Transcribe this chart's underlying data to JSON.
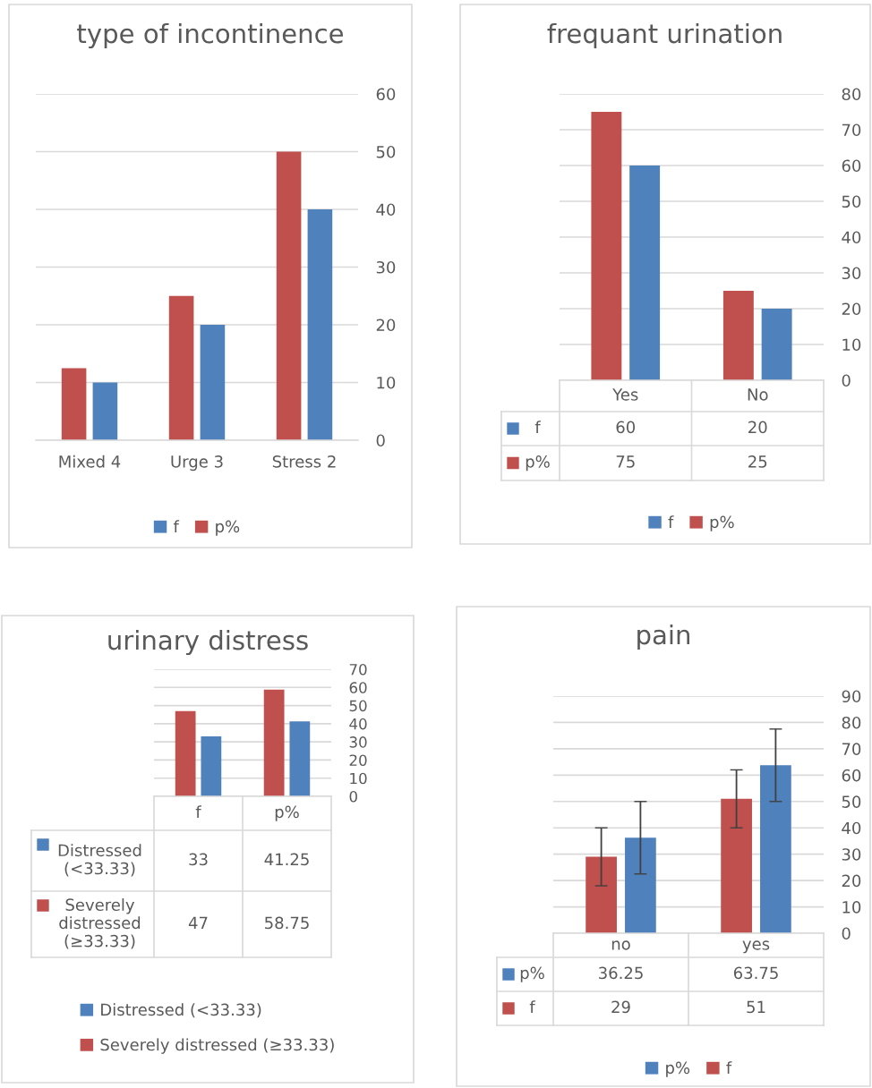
{
  "chart_data": [
    {
      "type": "bar",
      "title": "type of incontinence",
      "categories": [
        "Mixed 4",
        "Urge 3",
        "Stress 2"
      ],
      "series": [
        {
          "name": "f",
          "color": "#4f81bd",
          "values": [
            10,
            20,
            40
          ]
        },
        {
          "name": "p%",
          "color": "#c0504d",
          "values": [
            12.5,
            25,
            50
          ]
        }
      ],
      "ylim": [
        0,
        60
      ],
      "yticks": [
        0,
        10,
        20,
        30,
        40,
        50,
        60
      ],
      "grid": "y",
      "legend": "bottom"
    },
    {
      "type": "bar",
      "title": "frequant urination",
      "categories": [
        "Yes",
        "No"
      ],
      "series": [
        {
          "name": "f",
          "color": "#4f81bd",
          "values": [
            60,
            20
          ]
        },
        {
          "name": "p%",
          "color": "#c0504d",
          "values": [
            75,
            25
          ]
        }
      ],
      "ylim": [
        0,
        80
      ],
      "yticks": [
        0,
        10,
        20,
        30,
        40,
        50,
        60,
        70,
        80
      ],
      "grid": "y",
      "legend": "bottom",
      "data_labels": true
    },
    {
      "type": "bar",
      "title": "urinary distress",
      "categories": [
        "f",
        "p%"
      ],
      "series": [
        {
          "name": "Distressed (<33.33)",
          "color": "#4f81bd",
          "values": [
            33,
            41.25
          ]
        },
        {
          "name": "Severely distressed (≥33.33)",
          "color": "#c0504d",
          "values": [
            47,
            58.75
          ]
        }
      ],
      "ylim": [
        0,
        70
      ],
      "yticks": [
        0,
        10,
        20,
        30,
        40,
        50,
        60,
        70
      ],
      "grid": "y",
      "legend": "bottom",
      "data_labels": true
    },
    {
      "type": "bar",
      "title": "pain",
      "categories": [
        "no",
        "yes"
      ],
      "series": [
        {
          "name": "p%",
          "color": "#4f81bd",
          "values": [
            36.25,
            63.75
          ],
          "errors": [
            [
              22.5,
              50
            ],
            [
              50,
              77.5
            ]
          ]
        },
        {
          "name": "f",
          "color": "#c0504d",
          "values": [
            29,
            51
          ],
          "errors": [
            [
              18,
              40
            ],
            [
              40,
              62
            ]
          ]
        }
      ],
      "ylim": [
        0,
        90
      ],
      "yticks": [
        0,
        10,
        20,
        30,
        40,
        50,
        60,
        70,
        80,
        90
      ],
      "grid": "y",
      "legend": "bottom",
      "data_labels": true
    }
  ]
}
